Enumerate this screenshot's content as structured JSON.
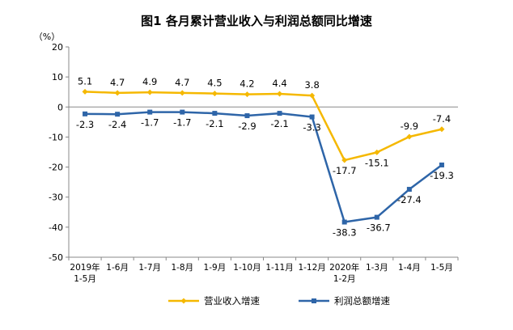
{
  "chart_data": {
    "type": "line",
    "title": "图1  各月累计营业收入与利润总额同比增速",
    "unit_label": "（%）",
    "categories": [
      [
        "2019年",
        "1-5月"
      ],
      [
        "1-6月"
      ],
      [
        "1-7月"
      ],
      [
        "1-8月"
      ],
      [
        "1-9月"
      ],
      [
        "1-10月"
      ],
      [
        "1-11月"
      ],
      [
        "1-12月"
      ],
      [
        "2020年",
        "1-2月"
      ],
      [
        "1-3月"
      ],
      [
        "1-4月"
      ],
      [
        "1-5月"
      ]
    ],
    "ylim": [
      -50,
      20
    ],
    "yticks": [
      20,
      10,
      0,
      -10,
      -20,
      -30,
      -40,
      -50
    ],
    "grid": false,
    "legend_position": "bottom",
    "series": [
      {
        "name": "营业收入增速",
        "color": "#F5B800",
        "marker": "diamond",
        "values": [
          5.1,
          4.7,
          4.9,
          4.7,
          4.5,
          4.2,
          4.4,
          3.8,
          -17.7,
          -15.1,
          -9.9,
          -7.4
        ],
        "labels": [
          "5.1",
          "4.7",
          "4.9",
          "4.7",
          "4.5",
          "4.2",
          "4.4",
          "3.8",
          "-17.7",
          "-15.1",
          "-9.9",
          "-7.4"
        ]
      },
      {
        "name": "利润总额增速",
        "color": "#2E65A8",
        "marker": "square",
        "values": [
          -2.3,
          -2.4,
          -1.7,
          -1.7,
          -2.1,
          -2.9,
          -2.1,
          -3.3,
          -38.3,
          -36.7,
          -27.4,
          -19.3
        ],
        "labels": [
          "-2.3",
          "-2.4",
          "-1.7",
          "-1.7",
          "-2.1",
          "-2.9",
          "-2.1",
          "-3.3",
          "-38.3",
          "-36.7",
          "-27.4",
          "-19.3"
        ]
      }
    ]
  }
}
